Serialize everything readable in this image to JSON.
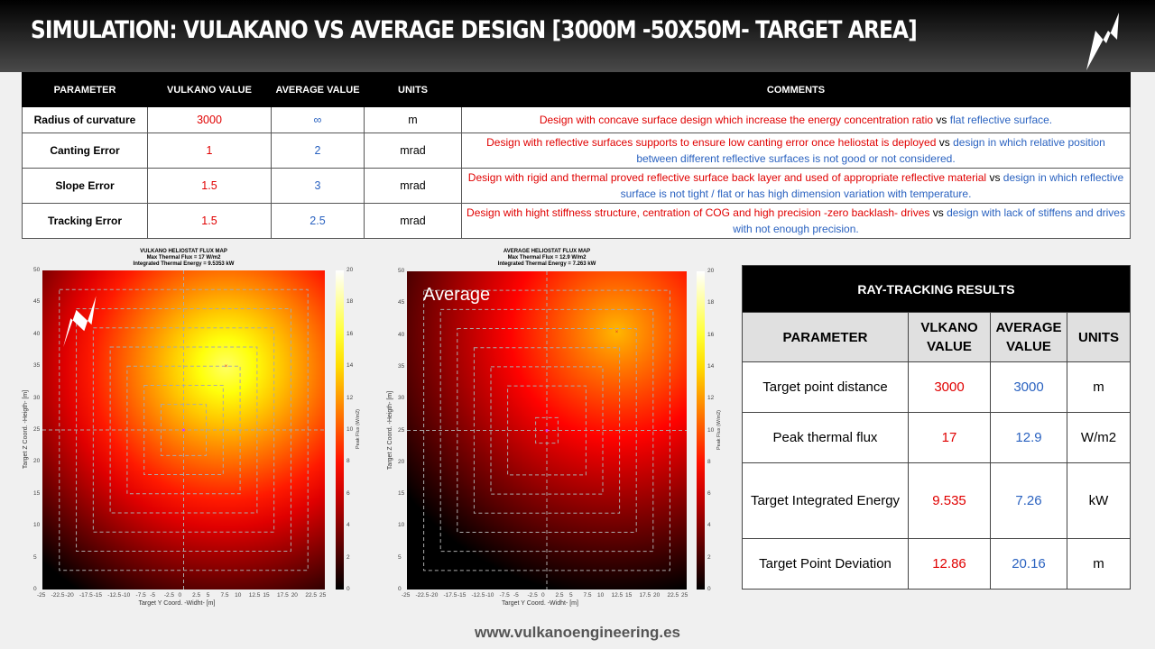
{
  "header": {
    "title": "Simulation: Vulakano vs Average design [3000m -50x50m- target area]",
    "logo_icon": "lightning-bolt-icon"
  },
  "params_table": {
    "headers": [
      "PARAMETER",
      "VULKANO VALUE",
      "AVERAGE VALUE",
      "UNITS",
      "COMMENTS"
    ],
    "rows": [
      {
        "parameter": "Radius of curvature",
        "vulkano": "3000",
        "average": "∞",
        "units": "m",
        "comment_vulkano": "Design with concave surface design which increase the energy concentration ratio",
        "comment_vs": "vs",
        "comment_average": "flat reflective surface."
      },
      {
        "parameter": "Canting Error",
        "vulkano": "1",
        "average": "2",
        "units": "mrad",
        "comment_vulkano": "Design with reflective surfaces supports to ensure low canting error once heliostat is deployed",
        "comment_vs": "vs",
        "comment_average": "design in which relative position between different reflective surfaces is not good or not considered."
      },
      {
        "parameter": "Slope Error",
        "vulkano": "1.5",
        "average": "3",
        "units": "mrad",
        "comment_vulkano": "Design with rigid and thermal proved reflective surface back layer and used of appropriate reflective material",
        "comment_vs": "vs",
        "comment_average": "design in which reflective surface is not tight / flat or has high dimension variation with temperature."
      },
      {
        "parameter": "Tracking Error",
        "vulkano": "1.5",
        "average": "2.5",
        "units": "mrad",
        "comment_vulkano": "Design with hight stiffness structure, centration of COG and high precision -zero backlash- drives",
        "comment_vs": "vs",
        "comment_average": "design with lack of stiffens and drives with not enough precision."
      }
    ]
  },
  "results_table": {
    "title": "RAY-TRACKING RESULTS",
    "headers": [
      "PARAMETER",
      "VLKANO VALUE",
      "AVERAGE VALUE",
      "UNITS"
    ],
    "rows": [
      {
        "parameter": "Target point distance",
        "vulkano": "3000",
        "average": "3000",
        "units": "m"
      },
      {
        "parameter": "Peak thermal flux",
        "vulkano": "17",
        "average": "12.9",
        "units": "W/m2"
      },
      {
        "parameter": "Target Integrated Energy",
        "vulkano": "9.535",
        "average": "7.26",
        "units": "kW"
      },
      {
        "parameter": "Target Point Deviation",
        "vulkano": "12.86",
        "average": "20.16",
        "units": "m"
      }
    ]
  },
  "chart_data": [
    {
      "type": "heatmap",
      "title": "VULKANO HELIOSTAT FLUX MAP",
      "subtitle1": "Max Thermal Flux = 17 W/m2",
      "subtitle2": "Integrated Thermal Energy = 9.5353 kW",
      "xlabel": "Target Y Coord. -Widht- [m]",
      "ylabel": "Target Z Coord. -Heigth- [m]",
      "colorbar_label": "Peak Flux (W/m2)",
      "xlim": [
        -25,
        25
      ],
      "ylim": [
        0,
        50
      ],
      "clim": [
        0,
        20
      ],
      "peak": {
        "x": 7.5,
        "y": 35,
        "value": 17
      },
      "aim": {
        "x": 0,
        "y": 25
      },
      "overlay": ""
    },
    {
      "type": "heatmap",
      "title": "AVERAGE HELIOSTAT FLUX MAP",
      "subtitle1": "Max Thermal Flux = 12.9 W/m2",
      "subtitle2": "Integrated Thermal Energy = 7.263 kW",
      "xlabel": "Target Y Coord. -Widht- [m]",
      "ylabel": "Target Z Coord. -Heigth- [m]",
      "colorbar_label": "Peak Flux (W/m2)",
      "xlim": [
        -25,
        25
      ],
      "ylim": [
        0,
        50
      ],
      "clim": [
        0,
        20
      ],
      "peak": {
        "x": 12.5,
        "y": 40.5,
        "value": 12.9
      },
      "aim": {
        "x": 0,
        "y": 25
      },
      "overlay": "Average"
    }
  ],
  "footer": {
    "url": "www.vulkanoengineering.es"
  }
}
